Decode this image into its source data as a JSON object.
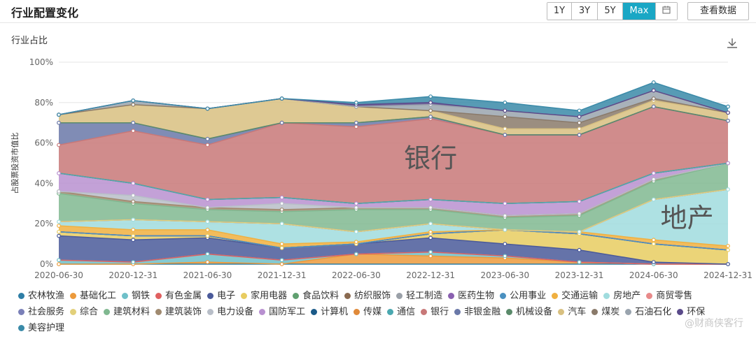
{
  "header": {
    "title": "行业配置变化",
    "ranges": [
      "1Y",
      "3Y",
      "5Y",
      "Max"
    ],
    "active_range": "Max",
    "view_data_label": "查看数据"
  },
  "subtitle": "行业占比",
  "watermark": "@财商侠客行",
  "chart_data": {
    "type": "area",
    "stacked": true,
    "ylabel": "占股票投资市值比",
    "ylim": [
      0,
      100
    ],
    "yticks": [
      "0%",
      "20%",
      "40%",
      "60%",
      "80%",
      "100%"
    ],
    "x": [
      "2020-06-30",
      "2020-12-31",
      "2021-06-30",
      "2021-12-31",
      "2022-06-30",
      "2022-12-31",
      "2023-06-30",
      "2023-12-31",
      "2024-06-30",
      "2024-12-31"
    ],
    "annotations": [
      {
        "text": "银行",
        "series": "银行"
      },
      {
        "text": "地产",
        "series": "房地产"
      }
    ],
    "series": [
      {
        "name": "农林牧渔",
        "color": "#2e7ea6",
        "values": [
          0,
          0,
          0,
          0,
          0,
          0,
          0,
          0,
          0,
          0
        ]
      },
      {
        "name": "基础化工",
        "color": "#ec9a3c",
        "values": [
          0,
          0,
          1,
          0,
          5,
          4,
          3,
          1,
          0,
          0
        ]
      },
      {
        "name": "钢铁",
        "color": "#6fc0c9",
        "values": [
          2,
          1,
          4,
          2,
          0,
          2,
          1,
          0,
          0,
          0
        ]
      },
      {
        "name": "有色金属",
        "color": "#e06060",
        "values": [
          0,
          0,
          0,
          0,
          0,
          0,
          0,
          0,
          0,
          0
        ]
      },
      {
        "name": "电子",
        "color": "#4a5a9a",
        "values": [
          12,
          11,
          8,
          6,
          5,
          7,
          6,
          6,
          1,
          0
        ]
      },
      {
        "name": "家用电器",
        "color": "#e8cc60",
        "values": [
          2,
          2,
          1,
          0,
          0,
          2,
          7,
          8,
          9,
          7
        ]
      },
      {
        "name": "食品饮料",
        "color": "#60a070",
        "values": [
          0,
          0,
          0,
          0,
          0,
          0,
          0,
          0,
          0,
          0
        ]
      },
      {
        "name": "纺织服饰",
        "color": "#8a6a50",
        "values": [
          0,
          0,
          0,
          0,
          0,
          0,
          0,
          0,
          0,
          0
        ]
      },
      {
        "name": "轻工制造",
        "color": "#9aa0a8",
        "values": [
          0,
          0,
          0,
          0,
          0,
          0,
          0,
          0,
          0,
          0
        ]
      },
      {
        "name": "医药生物",
        "color": "#8a60b0",
        "values": [
          0,
          0,
          0,
          0,
          0,
          0,
          0,
          0,
          0,
          0
        ]
      },
      {
        "name": "公用事业",
        "color": "#4a90c0",
        "values": [
          0,
          0,
          0,
          0,
          0,
          0,
          0,
          0,
          0,
          0
        ]
      },
      {
        "name": "交通运输",
        "color": "#f0b040",
        "values": [
          3,
          3,
          3,
          2,
          1,
          1,
          0,
          1,
          2,
          2
        ]
      },
      {
        "name": "房地产",
        "color": "#a0dcde",
        "values": [
          2,
          5,
          4,
          10,
          5,
          4,
          0,
          0,
          20,
          28
        ]
      },
      {
        "name": "商贸零售",
        "color": "#e88a8a",
        "values": [
          0,
          0,
          0,
          0,
          0,
          0,
          0,
          0,
          0,
          0
        ]
      },
      {
        "name": "社会服务",
        "color": "#7a80b8",
        "values": [
          0,
          0,
          0,
          0,
          0,
          0,
          0,
          0,
          0,
          0
        ]
      },
      {
        "name": "综合",
        "color": "#e2d07a",
        "values": [
          0,
          0,
          0,
          0,
          0,
          0,
          0,
          0,
          0,
          0
        ]
      },
      {
        "name": "建筑材料",
        "color": "#80b890",
        "values": [
          14,
          8,
          6,
          6,
          11,
          7,
          6,
          8,
          9,
          13
        ]
      },
      {
        "name": "建筑装饰",
        "color": "#a08a70",
        "values": [
          1,
          1,
          1,
          1,
          1,
          1,
          1,
          1,
          1,
          0
        ]
      },
      {
        "name": "电力设备",
        "color": "#b8bec8",
        "values": [
          0,
          3,
          0,
          3,
          0,
          0,
          0,
          0,
          0,
          0
        ]
      },
      {
        "name": "国防军工",
        "color": "#b890d0",
        "values": [
          9,
          6,
          4,
          3,
          2,
          4,
          6,
          6,
          3,
          0
        ]
      },
      {
        "name": "计算机",
        "color": "#1a5a88",
        "values": [
          0,
          0,
          0,
          0,
          0,
          0,
          0,
          0,
          0,
          0
        ]
      },
      {
        "name": "传媒",
        "color": "#e08a3a",
        "values": [
          0,
          0,
          0,
          0,
          0,
          0,
          0,
          0,
          0,
          0
        ]
      },
      {
        "name": "通信",
        "color": "#4aa8b0",
        "values": [
          0,
          0,
          0,
          0,
          0,
          0,
          0,
          0,
          0,
          0
        ]
      },
      {
        "name": "银行",
        "color": "#c87878",
        "values": [
          14,
          26,
          27,
          37,
          38,
          40,
          34,
          33,
          33,
          21
        ]
      },
      {
        "name": "非银金融",
        "color": "#6a78a8",
        "values": [
          11,
          4,
          3,
          0,
          2,
          1,
          0,
          0,
          0,
          0
        ]
      },
      {
        "name": "机械设备",
        "color": "#5a8a6a",
        "values": [
          0,
          0,
          0,
          0,
          0,
          0,
          0,
          0,
          0,
          0
        ]
      },
      {
        "name": "汽车",
        "color": "#d8c080",
        "values": [
          4,
          9,
          15,
          12,
          8,
          3,
          3,
          3,
          3,
          4
        ]
      },
      {
        "name": "煤炭",
        "color": "#8a7a6a",
        "values": [
          0,
          0,
          0,
          0,
          0,
          0,
          6,
          3,
          1,
          0
        ]
      },
      {
        "name": "石油石化",
        "color": "#9aa4ae",
        "values": [
          0,
          2,
          0,
          0,
          0,
          3,
          3,
          3,
          4,
          0
        ]
      },
      {
        "name": "环保",
        "color": "#5a4a8a",
        "values": [
          0,
          0,
          0,
          0,
          1,
          1,
          0,
          0,
          0,
          0
        ]
      },
      {
        "name": "美容护理",
        "color": "#3a8aa8",
        "values": [
          0,
          0,
          0,
          0,
          1,
          3,
          4,
          3,
          4,
          3
        ]
      }
    ]
  }
}
